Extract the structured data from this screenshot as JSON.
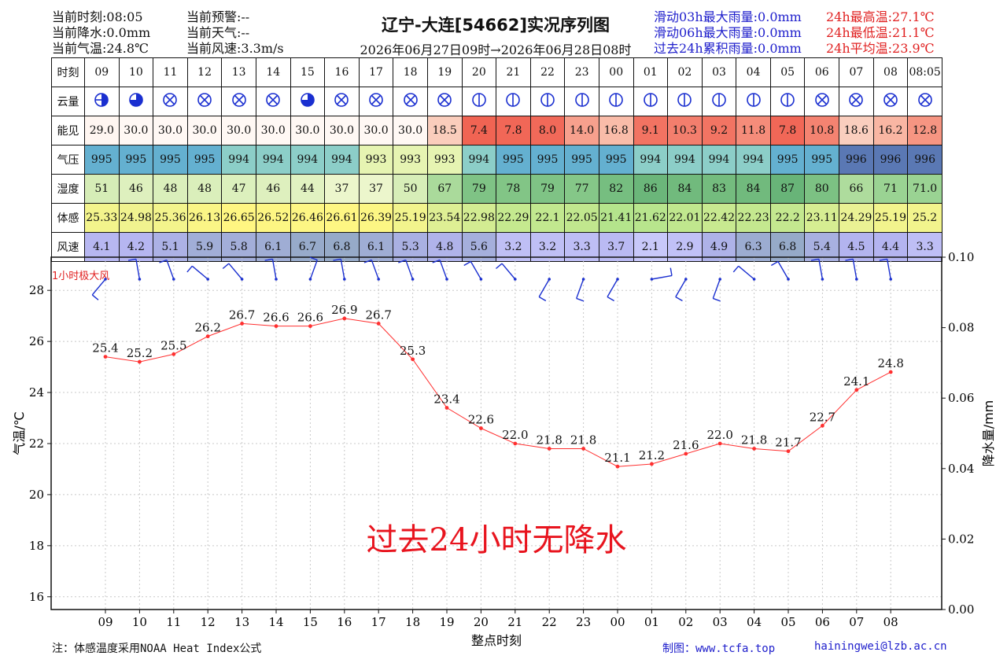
{
  "header": {
    "left1": [
      "当前时刻:08:05",
      "当前降水:0.0mm",
      "当前气温:24.8℃"
    ],
    "left2": [
      "当前预警:--",
      "当前天气:--",
      "当前风速:3.3m/s"
    ],
    "title": "辽宁-大连[54662]实况序列图",
    "subtitle": "2026年06月27日09时→2026年06月28日08时",
    "rain": [
      "滑动03h最大雨量:0.0mm",
      "滑动06h最大雨量:0.0mm",
      "过去24h累积雨量:0.0mm"
    ],
    "temp": [
      "24h最高温:27.1℃",
      "24h最低温:21.1℃",
      "24h平均温:23.9℃"
    ]
  },
  "table": {
    "row_labels": [
      "时刻",
      "云量",
      "能见",
      "气压",
      "湿度",
      "体感",
      "风速"
    ],
    "hours": [
      "09",
      "10",
      "11",
      "12",
      "13",
      "14",
      "15",
      "16",
      "17",
      "18",
      "19",
      "20",
      "21",
      "22",
      "23",
      "00",
      "01",
      "02",
      "03",
      "04",
      "05",
      "06",
      "07",
      "08",
      "08:05"
    ],
    "visibility": [
      "29.0",
      "30.0",
      "30.0",
      "30.0",
      "30.0",
      "30.0",
      "30.0",
      "30.0",
      "30.0",
      "30.0",
      "18.5",
      "7.4",
      "7.8",
      "8.0",
      "14.0",
      "16.8",
      "9.1",
      "10.3",
      "9.2",
      "11.8",
      "7.8",
      "10.8",
      "18.6",
      "16.2",
      "12.8"
    ],
    "pressure": [
      "995",
      "995",
      "995",
      "995",
      "994",
      "994",
      "994",
      "994",
      "993",
      "993",
      "993",
      "994",
      "995",
      "995",
      "995",
      "995",
      "994",
      "994",
      "994",
      "994",
      "995",
      "995",
      "996",
      "996",
      "996"
    ],
    "humidity": [
      "51",
      "46",
      "48",
      "48",
      "47",
      "46",
      "44",
      "37",
      "37",
      "50",
      "67",
      "79",
      "78",
      "79",
      "77",
      "82",
      "86",
      "84",
      "83",
      "84",
      "87",
      "80",
      "66",
      "71",
      "71.0"
    ],
    "feels_like": [
      "25.33",
      "24.98",
      "25.36",
      "26.13",
      "26.65",
      "26.52",
      "26.46",
      "26.61",
      "26.39",
      "25.19",
      "23.54",
      "22.98",
      "22.29",
      "22.1",
      "22.05",
      "21.41",
      "21.62",
      "22.01",
      "22.42",
      "22.23",
      "22.2",
      "23.11",
      "24.29",
      "25.19",
      "25.2"
    ],
    "wind_speed": [
      "4.1",
      "4.2",
      "5.1",
      "5.9",
      "5.8",
      "6.1",
      "6.7",
      "6.8",
      "6.1",
      "5.3",
      "4.8",
      "5.6",
      "3.2",
      "3.2",
      "3.3",
      "3.7",
      "2.1",
      "2.9",
      "4.9",
      "6.3",
      "6.8",
      "5.4",
      "4.5",
      "4.4",
      "3.3"
    ],
    "cloud_icons": [
      "half-cloud-icon",
      "three-quarter-cloud-icon",
      "obscured-sky-icon",
      "obscured-sky-icon",
      "obscured-sky-icon",
      "obscured-sky-icon",
      "three-quarter-cloud-icon",
      "obscured-sky-icon",
      "obscured-sky-icon",
      "obscured-sky-icon",
      "obscured-sky-icon",
      "clear-sky-icon",
      "clear-sky-icon",
      "clear-sky-icon",
      "clear-sky-icon",
      "clear-sky-icon",
      "clear-sky-icon",
      "clear-sky-icon",
      "clear-sky-icon",
      "clear-sky-icon",
      "clear-sky-icon",
      "obscured-sky-icon",
      "obscured-sky-icon",
      "obscured-sky-icon",
      "obscured-sky-icon"
    ]
  },
  "chart_data": {
    "type": "line",
    "x": [
      "09",
      "10",
      "11",
      "12",
      "13",
      "14",
      "15",
      "16",
      "17",
      "18",
      "19",
      "20",
      "21",
      "22",
      "23",
      "00",
      "01",
      "02",
      "03",
      "04",
      "05",
      "06",
      "07",
      "08"
    ],
    "series": [
      {
        "values": [
          25.4,
          25.2,
          25.5,
          26.2,
          26.7,
          26.6,
          26.6,
          26.9,
          26.7,
          25.3,
          23.4,
          22.6,
          22.0,
          21.8,
          21.8,
          21.1,
          21.2,
          21.6,
          22.0,
          21.8,
          21.7,
          22.7,
          24.1,
          24.8
        ]
      }
    ],
    "point_labels": [
      "25.4",
      "25.2",
      "25.5",
      "26.2",
      "26.7",
      "26.6",
      "26.6",
      "26.9",
      "26.7",
      "25.3",
      "23.4",
      "22.6",
      "22.0",
      "21.8",
      "21.8",
      "21.1",
      "21.2",
      "21.6",
      "22.0",
      "21.8",
      "21.7",
      "22.7",
      "24.1",
      "24.8"
    ],
    "xlabel": "整点时刻",
    "ylabel": "气温/℃",
    "y2label": "降水量/mm",
    "ylim": [
      15.5,
      29.3
    ],
    "yticks": [
      "16",
      "18",
      "20",
      "22",
      "24",
      "26",
      "28"
    ],
    "y2lim": [
      0.0,
      0.1
    ],
    "y2ticks": [
      "0.00",
      "0.02",
      "0.04",
      "0.06",
      "0.08",
      "0.10"
    ],
    "grid": true,
    "line_color": "#ff3030",
    "gust_label": "1小时极大风",
    "no_rain_text": "过去24小时无降水",
    "wind_dirs_deg": [
      320,
      190,
      200,
      230,
      220,
      190,
      160,
      190,
      200,
      200,
      200,
      210,
      220,
      330,
      340,
      330,
      100,
      330,
      340,
      230,
      210,
      190,
      190,
      190
    ]
  },
  "footer": {
    "note": "注：体感温度采用NOAA Heat Index公式",
    "credit": "制图：www.tcfa.top",
    "email": "hainingwei@lzb.ac.cn"
  },
  "colors": {
    "title": "#111111",
    "blue_text": "#2020cc",
    "red_text": "#e02020",
    "wind_barb": "#1a2fd0"
  }
}
